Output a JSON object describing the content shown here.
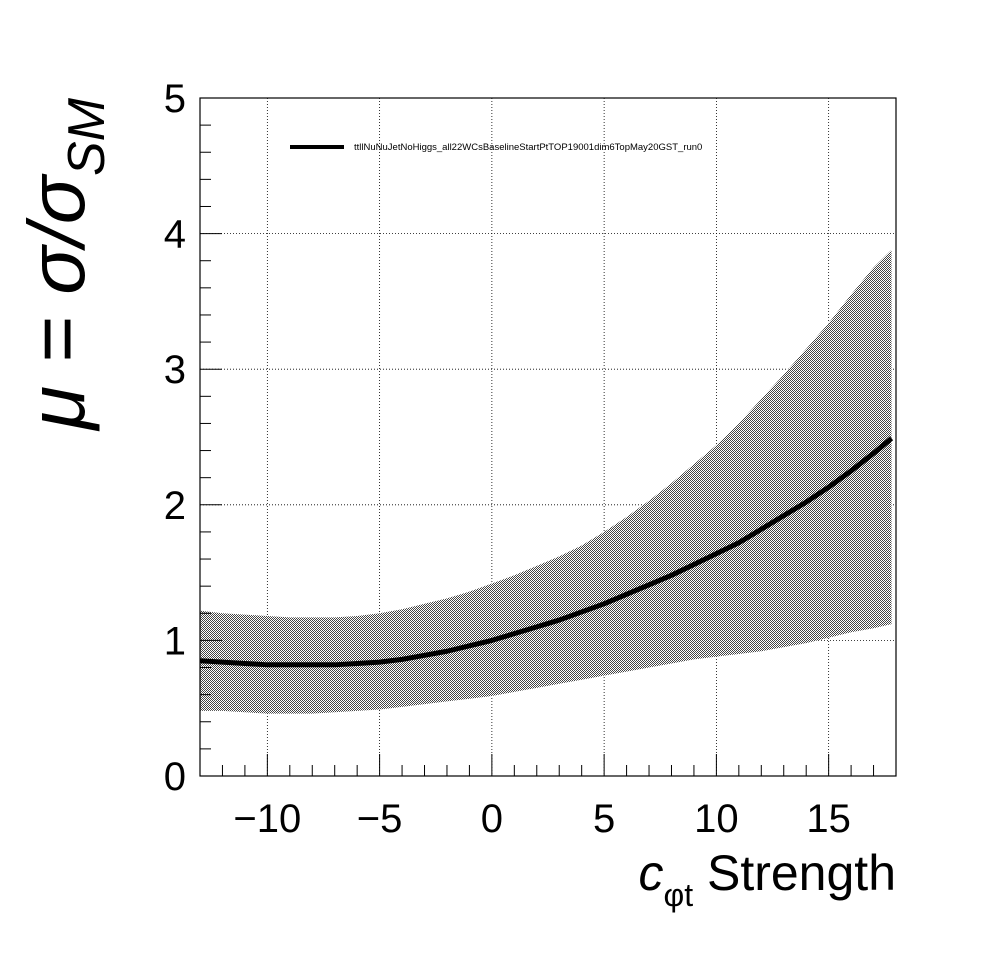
{
  "chart_data": {
    "type": "line",
    "xlabel": {
      "symbol": "c",
      "subscript": "φt",
      "suffix": " Strength"
    },
    "ylabel": {
      "prefix": "μ = σ/σ",
      "subscript": "SM"
    },
    "xlim": [
      -13,
      18
    ],
    "ylim": [
      0,
      5
    ],
    "xticks": [
      -10,
      -5,
      0,
      5,
      10,
      15
    ],
    "xtick_labels": [
      "−10",
      "−5",
      "0",
      "5",
      "10",
      "15"
    ],
    "yticks": [
      0,
      1,
      2,
      3,
      4,
      5
    ],
    "ytick_labels": [
      "0",
      "1",
      "2",
      "3",
      "4",
      "5"
    ],
    "grid": true,
    "legend_position": "top",
    "series": [
      {
        "name": "ttllNuNuJetNoHiggs_all22WCsBaselineStartPtTOP19001dim6TopMay20GST_run0",
        "x": [
          -13,
          -12,
          -11,
          -10,
          -9,
          -8,
          -7,
          -6,
          -5,
          -4,
          -3,
          -2,
          -1,
          0,
          1,
          2,
          3,
          4,
          5,
          6,
          7,
          8,
          9,
          10,
          11,
          12,
          13,
          14,
          15,
          16,
          17,
          17.8
        ],
        "y": [
          0.85,
          0.84,
          0.83,
          0.82,
          0.82,
          0.82,
          0.82,
          0.83,
          0.84,
          0.86,
          0.89,
          0.92,
          0.96,
          1.0,
          1.05,
          1.1,
          1.15,
          1.21,
          1.27,
          1.34,
          1.41,
          1.48,
          1.56,
          1.64,
          1.72,
          1.82,
          1.92,
          2.02,
          2.13,
          2.25,
          2.38,
          2.49
        ],
        "band_lower": [
          0.48,
          0.48,
          0.47,
          0.46,
          0.46,
          0.46,
          0.47,
          0.48,
          0.49,
          0.51,
          0.53,
          0.55,
          0.57,
          0.59,
          0.62,
          0.65,
          0.68,
          0.71,
          0.74,
          0.77,
          0.8,
          0.83,
          0.86,
          0.88,
          0.9,
          0.92,
          0.95,
          0.98,
          1.02,
          1.06,
          1.09,
          1.12
        ],
        "band_upper": [
          1.22,
          1.2,
          1.19,
          1.18,
          1.17,
          1.17,
          1.17,
          1.18,
          1.2,
          1.23,
          1.27,
          1.31,
          1.36,
          1.42,
          1.48,
          1.55,
          1.62,
          1.7,
          1.8,
          1.91,
          2.03,
          2.16,
          2.3,
          2.44,
          2.6,
          2.78,
          2.96,
          3.15,
          3.34,
          3.55,
          3.75,
          3.88
        ],
        "color": "#000000",
        "band_color": "#cfcfcf"
      }
    ]
  }
}
